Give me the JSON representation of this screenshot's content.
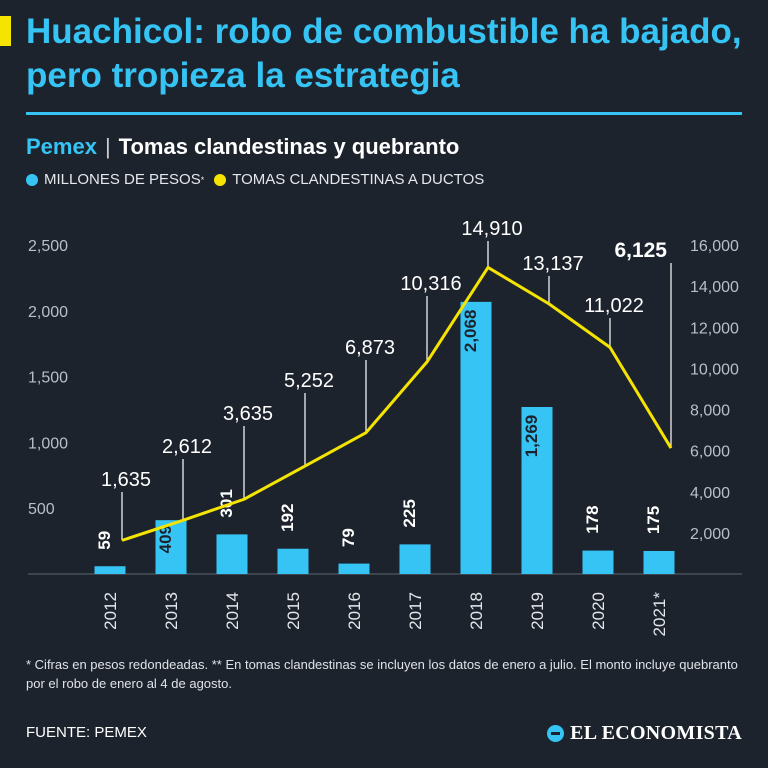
{
  "header": {
    "title": "Huachicol: robo de combustible ha bajado, pero tropieza la estrategia",
    "brand": "Pemex",
    "separator": "|",
    "subtitle": "Tomas clandestinas y quebranto"
  },
  "legend": {
    "bars_label": "MILLONES DE PESOS",
    "bars_mark": "*",
    "line_label": "TOMAS CLANDESTINAS A DUCTOS"
  },
  "colors": {
    "background": "#1d232d",
    "bars": "#35c4f4",
    "line": "#f5e400",
    "title": "#35c4f4",
    "text": "#ffffff"
  },
  "chart_data": {
    "type": "bar",
    "categories": [
      "2012",
      "2013",
      "2014",
      "2015",
      "2016",
      "2017",
      "2018",
      "2019",
      "2020",
      "2021*"
    ],
    "series": [
      {
        "name": "MILLONES DE PESOS",
        "chart": "bar",
        "axis": "left",
        "values": [
          59,
          409,
          301,
          192,
          79,
          225,
          2068,
          1269,
          178,
          175
        ],
        "labels": [
          "59",
          "409",
          "301",
          "192",
          "79",
          "225",
          "2,068",
          "1,269",
          "178",
          "175"
        ]
      },
      {
        "name": "TOMAS CLANDESTINAS A DUCTOS",
        "chart": "line",
        "axis": "right",
        "values": [
          1635,
          2612,
          3635,
          5252,
          6873,
          10316,
          14910,
          13137,
          11022,
          6125
        ],
        "labels": [
          "1,635",
          "2,612",
          "3,635",
          "5,252",
          "6,873",
          "10,316",
          "14,910",
          "13,137",
          "11,022",
          "6,125"
        ]
      }
    ],
    "left_axis": {
      "min": 0,
      "max": 2500,
      "ticks": [
        500,
        1000,
        1500,
        2000,
        2500
      ],
      "tick_labels": [
        "500",
        "1,000",
        "1,500",
        "2,000",
        "2,500"
      ]
    },
    "right_axis": {
      "min": 0,
      "max": 16000,
      "ticks": [
        2000,
        4000,
        6000,
        8000,
        10000,
        12000,
        14000,
        16000
      ],
      "tick_labels": [
        "2,000",
        "4,000",
        "6,000",
        "8,000",
        "10,000",
        "12,000",
        "14,000",
        "16,000"
      ]
    },
    "grid": false,
    "legend_position": "top-left"
  },
  "footer": {
    "footnote": "* Cifras en pesos redondeadas. ** En tomas clandestinas se incluyen los datos de enero a julio. El monto incluye quebranto por el robo de enero al 4 de agosto.",
    "source": "FUENTE: PEMEX",
    "logo_text": "EL ECONOMISTA"
  }
}
